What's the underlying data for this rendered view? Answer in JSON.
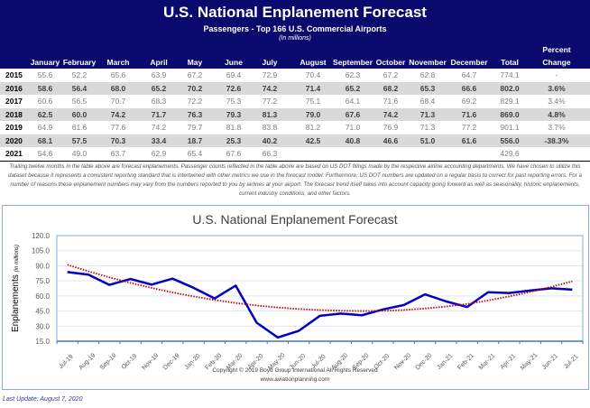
{
  "header": {
    "title": "U.S. National Enplanement Forecast",
    "subtitle": "Passengers - Top 166 U.S. Commercial Airports",
    "units": "(In millions)"
  },
  "table": {
    "columns": [
      "January",
      "February",
      "March",
      "April",
      "May",
      "June",
      "July",
      "August",
      "September",
      "October",
      "November",
      "December",
      "Total"
    ],
    "pct_header": [
      "Percent",
      "Change"
    ],
    "rows": [
      {
        "year": "2015",
        "values": [
          "55.6",
          "52.2",
          "65.6",
          "63.9",
          "67.2",
          "69.4",
          "72.9",
          "70.4",
          "62.3",
          "67.2",
          "62.8",
          "64.7",
          "774.1",
          "-"
        ]
      },
      {
        "year": "2016",
        "values": [
          "58.6",
          "56.4",
          "68.0",
          "65.2",
          "70.2",
          "72.6",
          "74.2",
          "71.4",
          "65.2",
          "68.2",
          "65.3",
          "66.6",
          "802.0",
          "3.6%"
        ]
      },
      {
        "year": "2017",
        "values": [
          "60.6",
          "56.5",
          "70.7",
          "68.3",
          "72.2",
          "75.3",
          "77.2",
          "75.1",
          "64.1",
          "71.6",
          "68.4",
          "69.2",
          "829.1",
          "3.4%"
        ]
      },
      {
        "year": "2018",
        "values": [
          "62.5",
          "60.0",
          "74.2",
          "71.7",
          "76.3",
          "79.3",
          "81.3",
          "79.0",
          "67.6",
          "74.2",
          "71.3",
          "71.6",
          "869.0",
          "4.8%"
        ]
      },
      {
        "year": "2019",
        "values": [
          "64.9",
          "61.6",
          "77.6",
          "74.2",
          "79.7",
          "81.8",
          "83.8",
          "81.2",
          "71.0",
          "76.9",
          "71.3",
          "77.2",
          "901.1",
          "3.7%"
        ]
      },
      {
        "year": "2020",
        "values": [
          "68.1",
          "57.5",
          "70.3",
          "33.4",
          "18.7",
          "25.3",
          "40.2",
          "42.5",
          "40.8",
          "46.6",
          "51.0",
          "61.6",
          "556.0",
          "-38.3%"
        ]
      },
      {
        "year": "2021",
        "values": [
          "54.6",
          "49.0",
          "63.7",
          "62.9",
          "65.4",
          "67.6",
          "66.3",
          "",
          "",
          "",
          "",
          "",
          "429.6",
          ""
        ]
      }
    ]
  },
  "note": "Trailing twelve months in the table above are forecast enplanements. Passenger counts reflected in the table above are based on US DOT filings made by the respective airline accounting departments. We have chosen to utilize this dataset because it represents a consistent reporting standard that is intertwined with other metrics we use in the forecast model. Furthermore, US DOT numbers are updated on a regular basis to correct for past reporting errors. For a number of reasons these enplanement numbers may vary from the numbers reported to you by airlines at your airport. The forecast trend itself takes into account capacity going forward as well as seasonality, historic enplanements, current industry conditions, and other factors.",
  "footer": {
    "copyright": "Copyright © 2019 Boyd Group International All Rights Reserved",
    "website": "www.aviationplanning.com",
    "last_update": "Last Update: August 7, 2020"
  },
  "colors": {
    "header_bg": "#0a0a6e",
    "line": "#0000c0",
    "trend": "#c00000",
    "grid": "#dce6f2",
    "axis": "#4472c4"
  },
  "chart_data": {
    "type": "line",
    "title": "U.S. National Enplanement Forecast",
    "xlabel": "",
    "ylabel": "Enplanements",
    "ylabel_units": "(in millions)",
    "ylim": [
      15,
      120
    ],
    "yticks": [
      "15.0",
      "30.0",
      "45.0",
      "60.0",
      "75.0",
      "90.0",
      "105.0",
      "120.0"
    ],
    "grid": true,
    "x": [
      "Jul-19",
      "Aug-19",
      "Sep-19",
      "Oct-19",
      "Nov-19",
      "Dec-19",
      "Jan-20",
      "Feb-20",
      "Mar-20",
      "Apr-20",
      "May-20",
      "Jun-20",
      "Jul-20",
      "Aug-20",
      "Sep-20",
      "Oct-20",
      "Nov-20",
      "Dec-20",
      "Jan-21",
      "Feb-21",
      "Mar-21",
      "Apr-21",
      "May-21",
      "Jun-21",
      "Jul-21"
    ],
    "series": [
      {
        "name": "Enplanements",
        "style": "solid",
        "values": [
          83.8,
          81.2,
          71.0,
          76.9,
          71.3,
          77.2,
          68.1,
          57.5,
          70.3,
          33.4,
          18.7,
          25.3,
          40.2,
          42.5,
          40.8,
          46.6,
          51.0,
          61.6,
          54.6,
          49.0,
          63.7,
          62.9,
          65.4,
          67.6,
          66.3
        ]
      },
      {
        "name": "Trend",
        "style": "dotted",
        "values": [
          91,
          84.5,
          78.5,
          73,
          68,
          63.5,
          59.5,
          56,
          53,
          50.5,
          48.5,
          47,
          46,
          45.3,
          45,
          45.2,
          46,
          47.5,
          49.5,
          52,
          55.5,
          59.5,
          64,
          69,
          74.5
        ]
      }
    ]
  }
}
